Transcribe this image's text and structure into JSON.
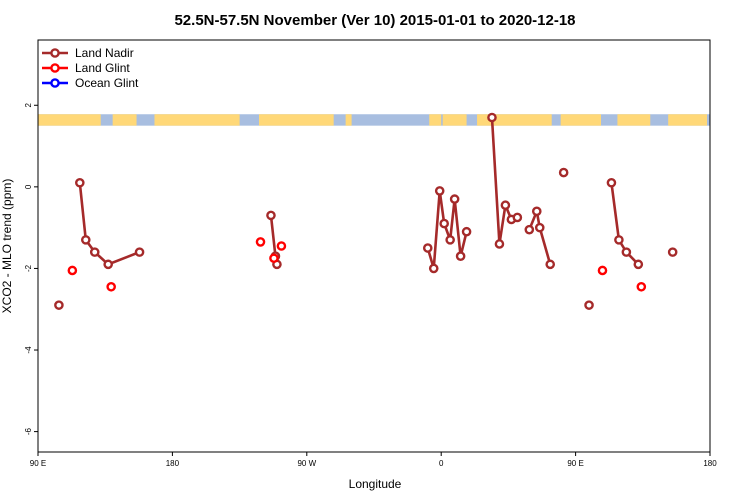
{
  "chart_data": {
    "type": "line",
    "title": "52.5N-57.5N November (Ver 10)   2015-01-01 to 2020-12-18",
    "xlabel": "Longitude",
    "ylabel": "XCO2 - MLO trend (ppm)",
    "x_ticks": [
      {
        "value": 90,
        "label": "90 E"
      },
      {
        "value": 180,
        "label": "180"
      },
      {
        "value": 270,
        "label": "90 W"
      },
      {
        "value": 360,
        "label": "0"
      },
      {
        "value": 450,
        "label": "90 E"
      },
      {
        "value": 540,
        "label": "180"
      }
    ],
    "y_ticks": [
      {
        "value": 2,
        "label": "2"
      },
      {
        "value": 0,
        "label": "0"
      },
      {
        "value": -2,
        "label": "-2"
      },
      {
        "value": -4,
        "label": "-4"
      },
      {
        "value": -6,
        "label": "-6"
      }
    ],
    "xlim": [
      90,
      540
    ],
    "ylim": [
      -6.5,
      3.6
    ],
    "grid": false,
    "legend_position": "top-left",
    "landmask_band": {
      "y_top": 1.78,
      "y_bottom": 1.5,
      "land_color": "#FFD878",
      "ocean_color": "#A8BEE0"
    },
    "series": [
      {
        "name": "Land Nadir",
        "color": "#A52A2A",
        "lines": true,
        "segments": [
          [
            [
              104,
              -2.9
            ]
          ],
          [
            [
              118,
              0.1
            ],
            [
              122,
              -1.3
            ],
            [
              128,
              -1.6
            ],
            [
              137,
              -1.9
            ],
            [
              158,
              -1.6
            ]
          ],
          [
            [
              246,
              -0.7
            ],
            [
              249,
              -1.7
            ],
            [
              250,
              -1.9
            ]
          ],
          [
            [
              351,
              -1.5
            ],
            [
              355,
              -2.0
            ],
            [
              359,
              -0.1
            ],
            [
              362,
              -0.9
            ],
            [
              366,
              -1.3
            ],
            [
              369,
              -0.3
            ],
            [
              373,
              -1.7
            ],
            [
              377,
              -1.1
            ]
          ],
          [
            [
              394,
              1.7
            ],
            [
              399,
              -1.4
            ],
            [
              403,
              -0.45
            ],
            [
              407,
              -0.8
            ],
            [
              411,
              -0.75
            ]
          ],
          [
            [
              419,
              -1.05
            ],
            [
              424,
              -0.6
            ],
            [
              426,
              -1.0
            ],
            [
              433,
              -1.9
            ]
          ],
          [
            [
              442,
              0.35
            ]
          ],
          [
            [
              459,
              -2.9
            ]
          ],
          [
            [
              474,
              0.1
            ],
            [
              479,
              -1.3
            ],
            [
              484,
              -1.6
            ],
            [
              492,
              -1.9
            ]
          ],
          [
            [
              515,
              -1.6
            ]
          ]
        ]
      },
      {
        "name": "Land Glint",
        "color": "#FF0000",
        "lines": false,
        "points": [
          [
            113,
            -2.05
          ],
          [
            139,
            -2.45
          ],
          [
            239,
            -1.35
          ],
          [
            248,
            -1.75
          ],
          [
            253,
            -1.45
          ],
          [
            468,
            -2.05
          ],
          [
            494,
            -2.45
          ]
        ]
      },
      {
        "name": "Ocean Glint",
        "color": "#0000FF",
        "lines": false,
        "points": []
      }
    ]
  }
}
